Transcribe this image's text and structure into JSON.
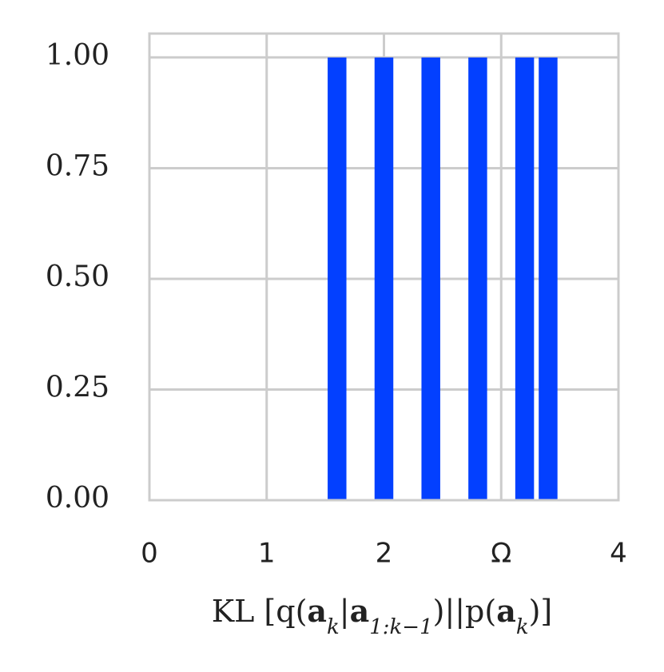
{
  "chart_data": {
    "type": "bar",
    "x": [
      1.6,
      2.0,
      2.4,
      2.8,
      3.2,
      3.4
    ],
    "values": [
      1.0,
      1.0,
      1.0,
      1.0,
      1.0,
      1.0
    ],
    "color": "#0340ff",
    "xlim": [
      0,
      4
    ],
    "xticks": [
      0,
      1,
      2,
      {
        "value": 3,
        "label": "Ω"
      },
      4
    ],
    "ylim": [
      0,
      1.054
    ],
    "yticks": [
      {
        "value": 0,
        "label": "0.00"
      },
      {
        "value": 0.25,
        "label": "0.25"
      },
      {
        "value": 0.5,
        "label": "0.50"
      },
      {
        "value": 0.75,
        "label": "0.75"
      },
      {
        "value": 1.0,
        "label": "1.00"
      }
    ],
    "grid": true,
    "xlabel": [
      {
        "text": "KL [q("
      },
      {
        "text": "a",
        "bold": true
      },
      {
        "text": "k",
        "sub": true
      },
      {
        "text": "|"
      },
      {
        "text": "a",
        "bold": true
      },
      {
        "text": "1:k−1",
        "sub": true
      },
      {
        "text": ")||p("
      },
      {
        "text": "a",
        "bold": true
      },
      {
        "text": "k",
        "sub": true
      },
      {
        "text": ")]"
      }
    ]
  }
}
